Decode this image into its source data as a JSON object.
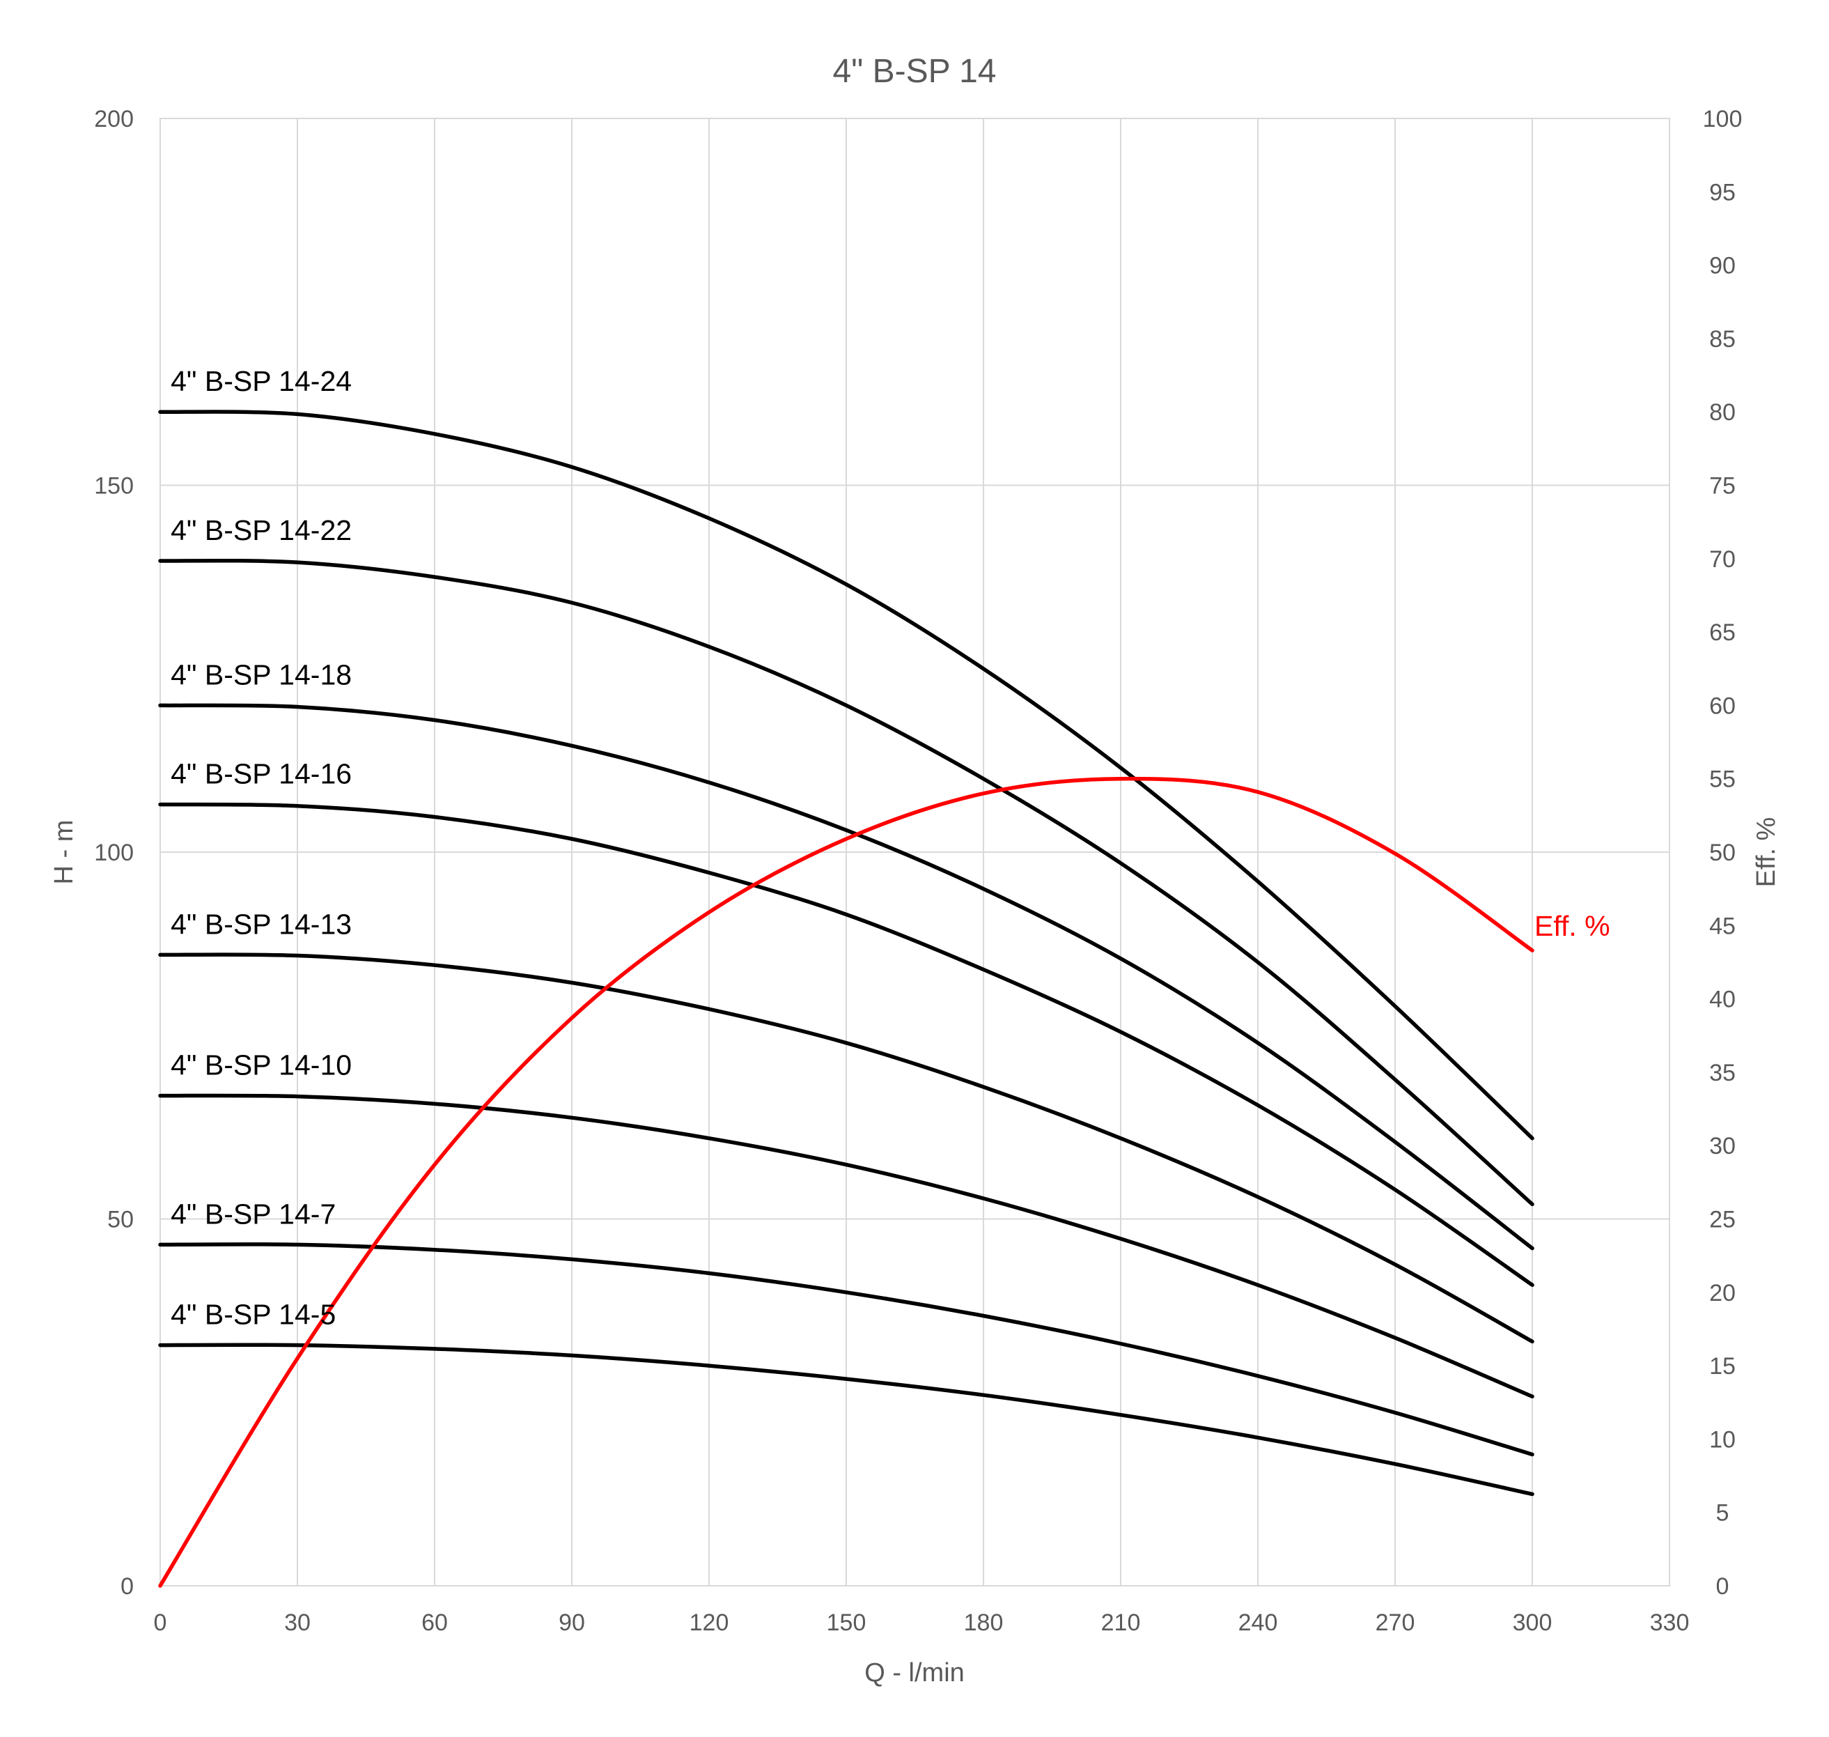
{
  "chart_data": {
    "type": "line",
    "title": "4\" B-SP 14",
    "xlabel": "Q - l/min",
    "ylabel": "H - m",
    "y2label": "Eff. %",
    "xlim": [
      0,
      330
    ],
    "ylim": [
      0,
      200
    ],
    "y2lim": [
      0,
      100
    ],
    "xticks": [
      "0",
      "30",
      "60",
      "90",
      "120",
      "150",
      "180",
      "210",
      "240",
      "270",
      "300",
      "330"
    ],
    "yticks": [
      "0",
      "50",
      "100",
      "150",
      "200"
    ],
    "y2ticks": [
      "0",
      "5",
      "10",
      "15",
      "20",
      "25",
      "30",
      "35",
      "40",
      "45",
      "50",
      "55",
      "60",
      "65",
      "70",
      "75",
      "80",
      "85",
      "90",
      "95",
      "100"
    ],
    "grid": true,
    "colors": {
      "head": "#000000",
      "efficiency": "#ff0000",
      "grid": "#d9d9d9",
      "text": "#595959"
    },
    "series": [
      {
        "name": "4\" B-SP 14-24",
        "axis": "left",
        "x": [
          0,
          30,
          60,
          90,
          120,
          150,
          180,
          210,
          240,
          270,
          300
        ],
        "values": [
          160,
          159.7,
          157,
          152.5,
          145.5,
          136.5,
          125,
          111.5,
          96,
          79,
          61
        ]
      },
      {
        "name": "4\" B-SP 14-22",
        "axis": "left",
        "x": [
          0,
          30,
          60,
          90,
          120,
          150,
          180,
          210,
          240,
          270,
          300
        ],
        "values": [
          139.7,
          139.5,
          137.5,
          134,
          128,
          120,
          110,
          98.5,
          85,
          69,
          52
        ]
      },
      {
        "name": "4\" B-SP 14-18",
        "axis": "left",
        "x": [
          0,
          30,
          60,
          90,
          120,
          150,
          180,
          210,
          240,
          270,
          300
        ],
        "values": [
          120,
          119.8,
          118,
          114.5,
          109.5,
          103,
          95,
          85.5,
          74,
          60.5,
          46
        ]
      },
      {
        "name": "4\" B-SP 14-16",
        "axis": "left",
        "x": [
          0,
          30,
          60,
          90,
          120,
          150,
          180,
          210,
          240,
          270,
          300
        ],
        "values": [
          106.5,
          106.3,
          104.8,
          101.8,
          97.2,
          91.5,
          84,
          75.5,
          65.5,
          54,
          41
        ]
      },
      {
        "name": "4\" B-SP 14-13",
        "axis": "left",
        "x": [
          0,
          30,
          60,
          90,
          120,
          150,
          180,
          210,
          240,
          270,
          300
        ],
        "values": [
          86,
          85.9,
          84.6,
          82.2,
          78.6,
          74,
          68,
          61,
          53,
          43.8,
          33.3
        ]
      },
      {
        "name": "4\" B-SP 14-10",
        "axis": "left",
        "x": [
          0,
          30,
          60,
          90,
          120,
          150,
          180,
          210,
          240,
          270,
          300
        ],
        "values": [
          66.8,
          66.7,
          65.7,
          63.8,
          61,
          57.4,
          52.8,
          47.3,
          41,
          33.8,
          25.8
        ]
      },
      {
        "name": "4\" B-SP 14-7",
        "axis": "left",
        "x": [
          0,
          30,
          60,
          90,
          120,
          150,
          180,
          210,
          240,
          270,
          300
        ],
        "values": [
          46.5,
          46.5,
          45.8,
          44.5,
          42.6,
          40,
          36.8,
          33,
          28.6,
          23.6,
          17.9
        ]
      },
      {
        "name": "4\" B-SP 14-5",
        "axis": "left",
        "x": [
          0,
          30,
          60,
          90,
          120,
          150,
          180,
          210,
          240,
          270,
          300
        ],
        "values": [
          32.8,
          32.8,
          32.3,
          31.4,
          30,
          28.2,
          26,
          23.3,
          20.2,
          16.6,
          12.5
        ]
      },
      {
        "name": "Eff. %",
        "axis": "right",
        "x": [
          0,
          30,
          60,
          90,
          120,
          150,
          180,
          210,
          240,
          270,
          300
        ],
        "values": [
          0,
          15.5,
          28.7,
          38.7,
          45.9,
          50.9,
          54,
          55,
          54.1,
          49.9,
          43.3
        ]
      }
    ]
  }
}
